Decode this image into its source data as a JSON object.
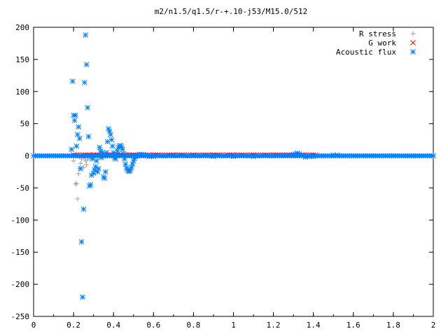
{
  "chart_data": {
    "type": "scatter",
    "title": "m2/n1.5/q1.5/r-+.10-j53/M15.0/512",
    "xlabel": "",
    "ylabel": "",
    "xlim": [
      0,
      2
    ],
    "ylim": [
      -250,
      200
    ],
    "x_ticks": [
      "0",
      "0.2",
      "0.4",
      "0.6",
      "0.8",
      "1",
      "1.2",
      "1.4",
      "1.6",
      "1.8",
      "2"
    ],
    "y_ticks": [
      "200",
      "150",
      "100",
      "50",
      "0",
      "-50",
      "-100",
      "-150",
      "-200",
      "-250"
    ],
    "legend_position": "top-right",
    "grid": false,
    "series": [
      {
        "name": "R stress",
        "marker": "plus",
        "color": "#a0a0a0",
        "points": [
          [
            0.2,
            -8
          ],
          [
            0.21,
            -44
          ],
          [
            0.215,
            -43
          ],
          [
            0.22,
            -67
          ],
          [
            0.225,
            -28
          ],
          [
            0.23,
            -20
          ],
          [
            0.235,
            -12
          ],
          [
            0.24,
            -5
          ],
          [
            0.25,
            -18
          ],
          [
            0.255,
            -3
          ],
          [
            0.26,
            -8
          ],
          [
            0.265,
            -14
          ],
          [
            0.27,
            -6
          ],
          [
            0.28,
            -4
          ],
          [
            0.29,
            -2
          ],
          [
            0.3,
            -1
          ],
          [
            0.32,
            -2
          ],
          [
            0.34,
            -1
          ],
          [
            0.36,
            -1
          ],
          [
            0.38,
            0
          ],
          [
            0.4,
            0
          ]
        ]
      },
      {
        "name": "G work",
        "marker": "cross",
        "color": "#ff0000",
        "points": [
          [
            0.2,
            0
          ],
          [
            0.22,
            0
          ],
          [
            0.24,
            0
          ],
          [
            0.26,
            0
          ],
          [
            0.28,
            1
          ],
          [
            0.3,
            1
          ],
          [
            0.32,
            1
          ],
          [
            0.34,
            0
          ],
          [
            0.36,
            1
          ],
          [
            0.38,
            1
          ],
          [
            0.4,
            1
          ],
          [
            0.42,
            1
          ],
          [
            0.44,
            1
          ],
          [
            0.46,
            1
          ],
          [
            0.48,
            1
          ],
          [
            0.5,
            1
          ],
          [
            0.55,
            1
          ],
          [
            0.6,
            1
          ],
          [
            0.7,
            1
          ],
          [
            0.8,
            1
          ],
          [
            0.9,
            1
          ],
          [
            1.0,
            1
          ],
          [
            1.1,
            1
          ],
          [
            1.2,
            1
          ],
          [
            1.3,
            1
          ],
          [
            1.35,
            1
          ],
          [
            1.4,
            1
          ]
        ]
      },
      {
        "name": "Acoustic flux",
        "marker": "star",
        "color": "#0080ff",
        "points": [
          [
            0.19,
            10
          ],
          [
            0.195,
            116
          ],
          [
            0.2,
            63
          ],
          [
            0.205,
            55
          ],
          [
            0.21,
            63
          ],
          [
            0.215,
            15
          ],
          [
            0.22,
            33
          ],
          [
            0.225,
            45
          ],
          [
            0.23,
            27
          ],
          [
            0.235,
            -20
          ],
          [
            0.24,
            -134
          ],
          [
            0.245,
            -220
          ],
          [
            0.25,
            -83
          ],
          [
            0.255,
            114
          ],
          [
            0.26,
            188
          ],
          [
            0.265,
            142
          ],
          [
            0.27,
            75
          ],
          [
            0.275,
            30
          ],
          [
            0.28,
            -47
          ],
          [
            0.285,
            -45
          ],
          [
            0.29,
            -30
          ],
          [
            0.295,
            -5
          ],
          [
            0.3,
            -27
          ],
          [
            0.305,
            -22
          ],
          [
            0.31,
            -17
          ],
          [
            0.315,
            -8
          ],
          [
            0.32,
            -25
          ],
          [
            0.325,
            -20
          ],
          [
            0.33,
            13
          ],
          [
            0.335,
            7
          ],
          [
            0.34,
            -3
          ],
          [
            0.345,
            5
          ],
          [
            0.35,
            -33
          ],
          [
            0.355,
            -35
          ],
          [
            0.36,
            -25
          ],
          [
            0.365,
            5
          ],
          [
            0.37,
            22
          ],
          [
            0.375,
            42
          ],
          [
            0.38,
            38
          ],
          [
            0.385,
            33
          ],
          [
            0.39,
            25
          ],
          [
            0.395,
            15
          ],
          [
            0.4,
            5
          ],
          [
            0.405,
            -3
          ],
          [
            0.41,
            -5
          ],
          [
            0.415,
            2
          ],
          [
            0.42,
            8
          ],
          [
            0.425,
            13
          ],
          [
            0.43,
            15
          ],
          [
            0.435,
            16
          ],
          [
            0.44,
            14
          ],
          [
            0.445,
            10
          ],
          [
            0.45,
            3
          ],
          [
            0.455,
            -5
          ],
          [
            0.46,
            -13
          ],
          [
            0.465,
            -19
          ],
          [
            0.47,
            -22
          ],
          [
            0.475,
            -24
          ],
          [
            0.48,
            -24
          ],
          [
            0.485,
            -22
          ],
          [
            0.49,
            -18
          ],
          [
            0.495,
            -13
          ],
          [
            0.5,
            -8
          ],
          [
            0.505,
            -4
          ],
          [
            0.51,
            -1
          ],
          [
            0.52,
            1
          ],
          [
            0.53,
            2
          ],
          [
            0.54,
            2
          ],
          [
            0.55,
            2
          ],
          [
            0.56,
            1
          ],
          [
            0.57,
            0
          ],
          [
            0.58,
            -1
          ],
          [
            0.6,
            -1
          ],
          [
            0.65,
            0
          ],
          [
            0.7,
            0
          ],
          [
            0.8,
            0
          ],
          [
            0.9,
            -1
          ],
          [
            1.0,
            -1
          ],
          [
            1.1,
            -1
          ],
          [
            1.2,
            0
          ],
          [
            1.25,
            1
          ],
          [
            1.28,
            0
          ],
          [
            1.3,
            2
          ],
          [
            1.31,
            3
          ],
          [
            1.32,
            4
          ],
          [
            1.33,
            3
          ],
          [
            1.34,
            1
          ],
          [
            1.36,
            -2
          ],
          [
            1.38,
            -1
          ],
          [
            1.4,
            -1
          ],
          [
            1.45,
            0
          ],
          [
            1.5,
            1
          ],
          [
            1.52,
            1
          ],
          [
            1.55,
            0
          ],
          [
            1.6,
            0
          ],
          [
            1.7,
            0
          ],
          [
            1.8,
            0
          ],
          [
            1.9,
            0
          ],
          [
            2.0,
            0
          ]
        ]
      }
    ]
  }
}
